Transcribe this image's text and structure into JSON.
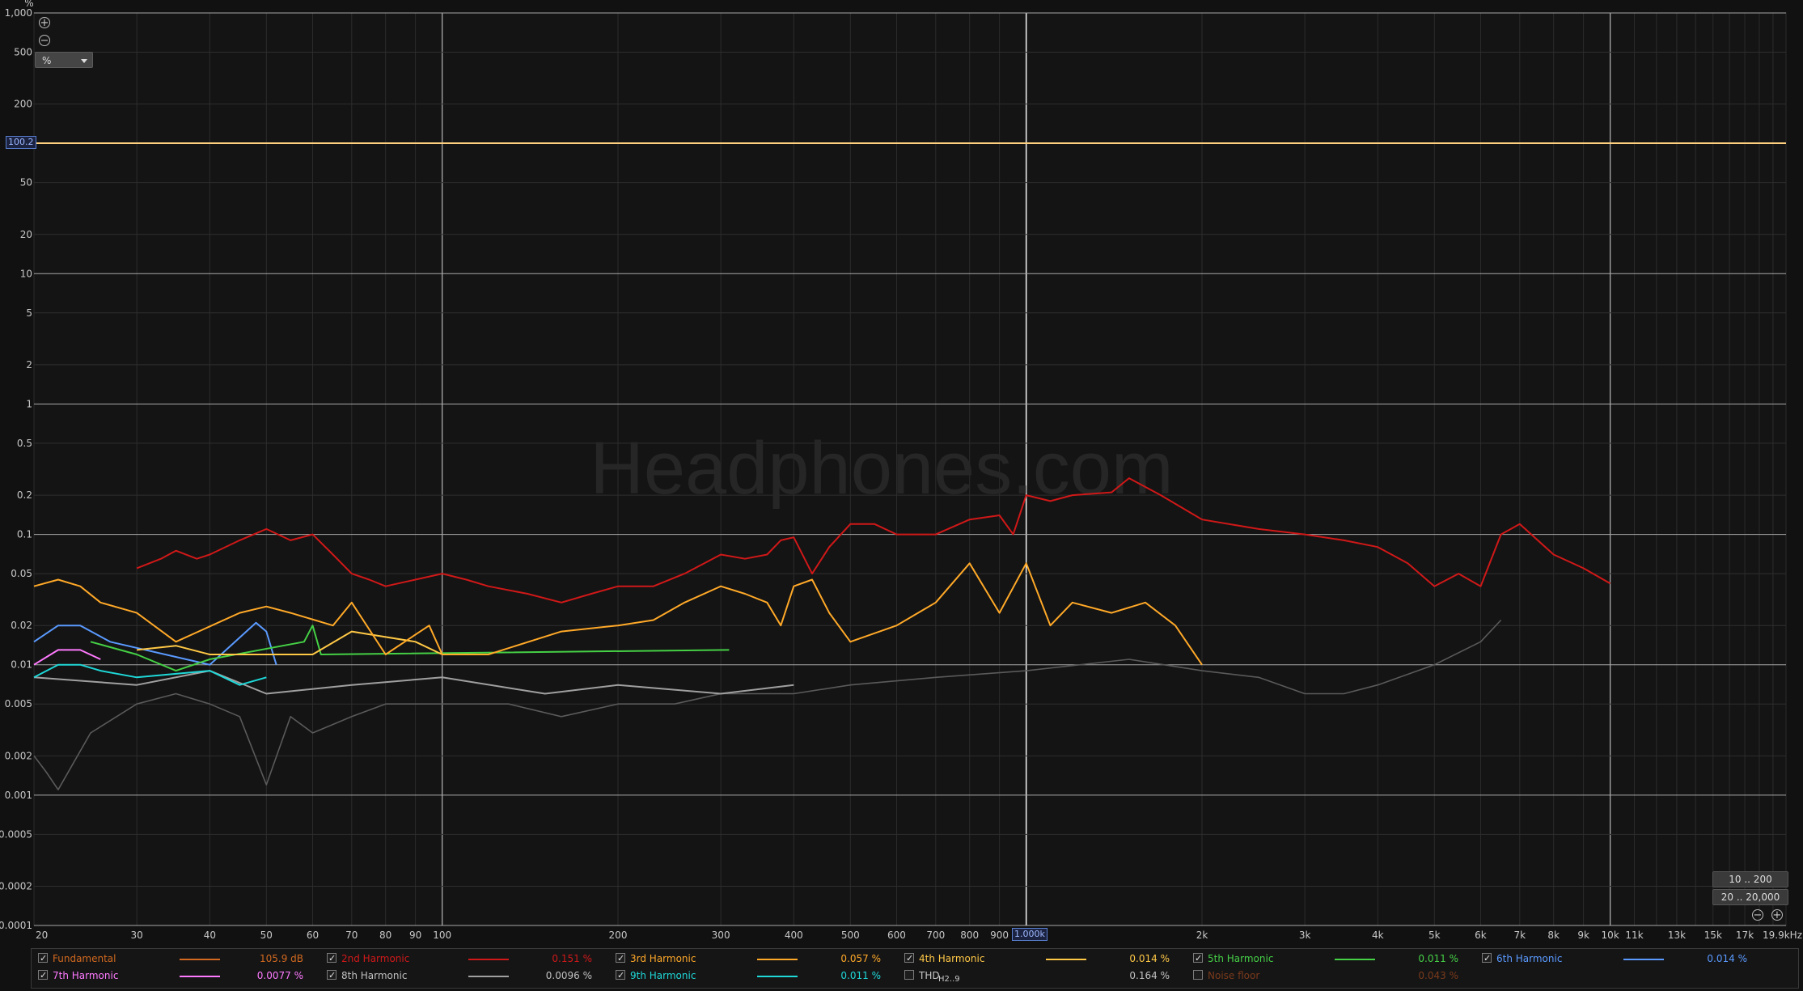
{
  "watermark": "Headphones.com",
  "unit_label": "%",
  "unit_select": "%",
  "y_marker": "100.2",
  "x_marker": "1.000k",
  "buttons": {
    "range_low": "10 .. 200",
    "range_full": "20 .. 20,000"
  },
  "chart_data": {
    "type": "line",
    "xscale": "log",
    "yscale": "log",
    "xlim": [
      20,
      20000
    ],
    "ylim": [
      0.0001,
      1000
    ],
    "ylabel": "%",
    "xlabel": "",
    "x_ticks": [
      {
        "v": 20,
        "l": "20"
      },
      {
        "v": 30,
        "l": "30"
      },
      {
        "v": 40,
        "l": "40"
      },
      {
        "v": 50,
        "l": "50"
      },
      {
        "v": 60,
        "l": "60"
      },
      {
        "v": 70,
        "l": "70"
      },
      {
        "v": 80,
        "l": "80"
      },
      {
        "v": 90,
        "l": "90"
      },
      {
        "v": 100,
        "l": "100"
      },
      {
        "v": 200,
        "l": "200"
      },
      {
        "v": 300,
        "l": "300"
      },
      {
        "v": 400,
        "l": "400"
      },
      {
        "v": 500,
        "l": "500"
      },
      {
        "v": 600,
        "l": "600"
      },
      {
        "v": 700,
        "l": "700"
      },
      {
        "v": 800,
        "l": "800"
      },
      {
        "v": 900,
        "l": "900"
      },
      {
        "v": 2000,
        "l": "2k"
      },
      {
        "v": 3000,
        "l": "3k"
      },
      {
        "v": 4000,
        "l": "4k"
      },
      {
        "v": 5000,
        "l": "5k"
      },
      {
        "v": 6000,
        "l": "6k"
      },
      {
        "v": 7000,
        "l": "7k"
      },
      {
        "v": 8000,
        "l": "8k"
      },
      {
        "v": 9000,
        "l": "9k"
      },
      {
        "v": 10000,
        "l": "10k"
      },
      {
        "v": 11000,
        "l": "11k"
      },
      {
        "v": 13000,
        "l": "13k"
      },
      {
        "v": 15000,
        "l": "15k"
      },
      {
        "v": 17000,
        "l": "17k"
      },
      {
        "v": 19900,
        "l": "19.9kHz"
      }
    ],
    "y_ticks": [
      {
        "v": 1000,
        "l": "1,000"
      },
      {
        "v": 500,
        "l": "500"
      },
      {
        "v": 200,
        "l": "200"
      },
      {
        "v": 50,
        "l": "50"
      },
      {
        "v": 20,
        "l": "20"
      },
      {
        "v": 10,
        "l": "10"
      },
      {
        "v": 5,
        "l": "5"
      },
      {
        "v": 2,
        "l": "2"
      },
      {
        "v": 1,
        "l": "1"
      },
      {
        "v": 0.5,
        "l": "0.5"
      },
      {
        "v": 0.2,
        "l": "0.2"
      },
      {
        "v": 0.1,
        "l": "0.1"
      },
      {
        "v": 0.05,
        "l": "0.05"
      },
      {
        "v": 0.02,
        "l": "0.02"
      },
      {
        "v": 0.01,
        "l": "0.01"
      },
      {
        "v": 0.005,
        "l": "0.005"
      },
      {
        "v": 0.002,
        "l": "0.002"
      },
      {
        "v": 0.001,
        "l": "0.001"
      },
      {
        "v": 0.0005,
        "l": "0.0005"
      },
      {
        "v": 0.0002,
        "l": "0.0002"
      },
      {
        "v": 0.0001,
        "l": "0.0001"
      }
    ],
    "series": [
      {
        "name": "Fundamental",
        "color": "#ffd080",
        "x": [
          20,
          20000
        ],
        "y": [
          100.2,
          100.2
        ]
      },
      {
        "name": "2nd Harmonic",
        "color": "#d01818",
        "x": [
          30,
          33,
          35,
          38,
          40,
          45,
          50,
          55,
          60,
          65,
          70,
          75,
          80,
          90,
          100,
          110,
          120,
          140,
          160,
          180,
          200,
          230,
          260,
          300,
          330,
          360,
          380,
          400,
          430,
          460,
          500,
          550,
          600,
          700,
          800,
          900,
          950,
          1000,
          1100,
          1200,
          1400,
          1500,
          1700,
          2000,
          2500,
          3000,
          3500,
          4000,
          4500,
          5000,
          5500,
          6000,
          6500,
          7000,
          8000,
          9000,
          10000
        ],
        "y": [
          0.055,
          0.065,
          0.075,
          0.065,
          0.07,
          0.09,
          0.11,
          0.09,
          0.1,
          0.07,
          0.05,
          0.045,
          0.04,
          0.045,
          0.05,
          0.045,
          0.04,
          0.035,
          0.03,
          0.035,
          0.04,
          0.04,
          0.05,
          0.07,
          0.065,
          0.07,
          0.09,
          0.095,
          0.05,
          0.08,
          0.12,
          0.12,
          0.1,
          0.1,
          0.13,
          0.14,
          0.1,
          0.2,
          0.18,
          0.2,
          0.21,
          0.27,
          0.2,
          0.13,
          0.11,
          0.1,
          0.09,
          0.08,
          0.06,
          0.04,
          0.05,
          0.04,
          0.1,
          0.12,
          0.07,
          0.055,
          0.042
        ]
      },
      {
        "name": "3rd Harmonic",
        "color": "#ffa928",
        "x": [
          20,
          22,
          24,
          26,
          30,
          35,
          45,
          50,
          55,
          65,
          70,
          80,
          95,
          100,
          120,
          160,
          200,
          230,
          260,
          300,
          330,
          360,
          380,
          400,
          430,
          460,
          500,
          600,
          700,
          800,
          900,
          1000,
          1100,
          1200,
          1400,
          1600,
          1800,
          2000
        ],
        "y": [
          0.04,
          0.045,
          0.04,
          0.03,
          0.025,
          0.015,
          0.025,
          0.028,
          0.025,
          0.02,
          0.03,
          0.012,
          0.02,
          0.012,
          0.012,
          0.018,
          0.02,
          0.022,
          0.03,
          0.04,
          0.035,
          0.03,
          0.02,
          0.04,
          0.045,
          0.025,
          0.015,
          0.02,
          0.03,
          0.06,
          0.025,
          0.06,
          0.02,
          0.03,
          0.025,
          0.03,
          0.02,
          0.01
        ]
      },
      {
        "name": "4th Harmonic",
        "color": "#ffc845",
        "x": [
          30,
          35,
          40,
          60,
          70,
          90,
          100
        ],
        "y": [
          0.013,
          0.014,
          0.012,
          0.012,
          0.018,
          0.015,
          0.012
        ]
      },
      {
        "name": "5th Harmonic",
        "color": "#45d045",
        "x": [
          25,
          30,
          35,
          40,
          58,
          60,
          62,
          310
        ],
        "y": [
          0.015,
          0.012,
          0.009,
          0.011,
          0.015,
          0.02,
          0.012,
          0.013
        ]
      },
      {
        "name": "6th Harmonic",
        "color": "#5a9aff",
        "x": [
          20,
          22,
          24,
          27,
          40,
          48,
          50,
          52
        ],
        "y": [
          0.015,
          0.02,
          0.02,
          0.015,
          0.01,
          0.021,
          0.018,
          0.01
        ]
      },
      {
        "name": "7th Harmonic",
        "color": "#ff7aff",
        "x": [
          20,
          22,
          24,
          26
        ],
        "y": [
          0.01,
          0.013,
          0.013,
          0.011
        ]
      },
      {
        "name": "8th Harmonic",
        "color": "#a0a0a0",
        "x": [
          20,
          30,
          40,
          50,
          70,
          100,
          150,
          200,
          300,
          400
        ],
        "y": [
          0.008,
          0.007,
          0.009,
          0.006,
          0.007,
          0.008,
          0.006,
          0.007,
          0.006,
          0.007
        ]
      },
      {
        "name": "9th Harmonic",
        "color": "#1fd8d8",
        "x": [
          20,
          22,
          24,
          26,
          30,
          40,
          45,
          50
        ],
        "y": [
          0.008,
          0.01,
          0.01,
          0.009,
          0.008,
          0.009,
          0.007,
          0.008
        ]
      },
      {
        "name": "Noise floor",
        "color": "#5a5a5a",
        "x": [
          20,
          21,
          22,
          25,
          30,
          35,
          40,
          45,
          50,
          55,
          60,
          70,
          80,
          100,
          130,
          160,
          200,
          250,
          300,
          400,
          500,
          700,
          1000,
          1500,
          2000,
          2500,
          3000,
          3500,
          4000,
          5000,
          6000,
          6500
        ],
        "y": [
          0.002,
          0.0015,
          0.0011,
          0.003,
          0.005,
          0.006,
          0.005,
          0.004,
          0.0012,
          0.004,
          0.003,
          0.004,
          0.005,
          0.005,
          0.005,
          0.004,
          0.005,
          0.005,
          0.006,
          0.006,
          0.007,
          0.008,
          0.009,
          0.011,
          0.009,
          0.008,
          0.006,
          0.006,
          0.007,
          0.01,
          0.015,
          0.022
        ]
      }
    ]
  },
  "legend": {
    "row1": [
      {
        "label": "Fundamental",
        "value": "105.9 dB",
        "color": "#d2691e",
        "valcolor": "#d2691e",
        "checked": true
      },
      {
        "label": "2nd Harmonic",
        "value": "0.151 %",
        "color": "#d01818",
        "valcolor": "#d01818",
        "checked": true
      },
      {
        "label": "3rd Harmonic",
        "value": "0.057 %",
        "color": "#ffa928",
        "valcolor": "#ffa928",
        "checked": true
      },
      {
        "label": "4th Harmonic",
        "value": "0.014 %",
        "color": "#ffc845",
        "valcolor": "#ffc845",
        "checked": true
      },
      {
        "label": "5th Harmonic",
        "value": "0.011 %",
        "color": "#45d045",
        "valcolor": "#45d045",
        "checked": true
      },
      {
        "label": "6th Harmonic",
        "value": "0.014 %",
        "color": "#5a9aff",
        "valcolor": "#5a9aff",
        "checked": true
      }
    ],
    "row2": [
      {
        "label": "7th Harmonic",
        "value": "0.0077 %",
        "color": "#ff7aff",
        "valcolor": "#ff7aff",
        "checked": true
      },
      {
        "label": "8th Harmonic",
        "value": "0.0096 %",
        "color": "#a0a0a0",
        "valcolor": "#c0c0c0",
        "checked": true
      },
      {
        "label": "9th Harmonic",
        "value": "0.011 %",
        "color": "#1fd8d8",
        "valcolor": "#1fd8d8",
        "checked": true
      },
      {
        "label": "THD",
        "sub": "H2..9",
        "value": "0.164 %",
        "color": "",
        "valcolor": "#c0c0c0",
        "checked": false
      },
      {
        "label": "Noise floor",
        "value": "0.043 %",
        "color": "",
        "valcolor": "#7a3a1a",
        "checked": false
      }
    ]
  }
}
